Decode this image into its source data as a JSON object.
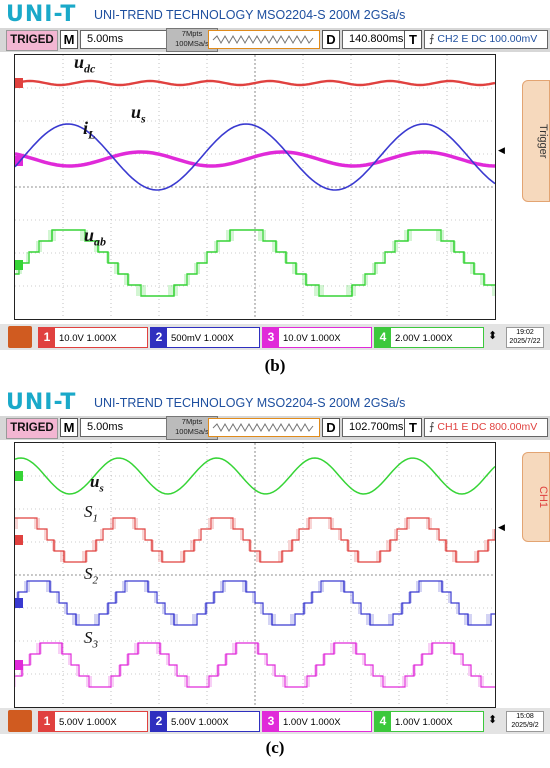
{
  "panel_b": {
    "logo": "UNI-T",
    "brand": "UNI-TREND TECHNOLOGY MSO2204-S 200M 2GSa/s",
    "status": {
      "trig": "TRIGED",
      "m_key": "M",
      "timebase": "5.00ms",
      "mem_top": "7Mpts",
      "mem_bottom": "100MSa/s",
      "d_key": "D",
      "delay": "140.800ms",
      "t_key": "T",
      "trigger_setting": "CH2 E DC 100.00mV"
    },
    "side_tab": "Trigger",
    "signal_labels": {
      "udc_main": "u",
      "udc_sub": "dc",
      "us_main": "u",
      "us_sub": "s",
      "il_main": "i",
      "il_sub": "L",
      "uab_main": "u",
      "uab_sub": "ab"
    },
    "channels": [
      {
        "num": "1",
        "setting": "10.0V 1.000X",
        "color": "#e0413f"
      },
      {
        "num": "2",
        "setting": "500mV 1.000X",
        "color": "#2f2fbf"
      },
      {
        "num": "3",
        "setting": "10.0V 1.000X",
        "color": "#e02ad9"
      },
      {
        "num": "4",
        "setting": "2.00V 1.000X",
        "color": "#3cc83c"
      }
    ],
    "clock_time": "19:02",
    "clock_date": "2025/7/22",
    "caption": "(b)"
  },
  "panel_c": {
    "logo": "UNI-T",
    "brand": "UNI-TREND TECHNOLOGY MSO2204-S 200M 2GSa/s",
    "status": {
      "trig": "TRIGED",
      "m_key": "M",
      "timebase": "5.00ms",
      "mem_top": "7Mpts",
      "mem_bottom": "100MSa/s",
      "d_key": "D",
      "delay": "102.700ms",
      "t_key": "T",
      "trigger_setting": "CH1 E DC 800.00mV"
    },
    "side_tab": "CH1",
    "signal_labels": {
      "us_main": "u",
      "us_sub": "s",
      "s1_main": "S",
      "s1_sub": "1",
      "s2_main": "S",
      "s2_sub": "2",
      "s3_main": "S",
      "s3_sub": "3"
    },
    "channels": [
      {
        "num": "1",
        "setting": "5.00V 1.000X",
        "color": "#e0413f"
      },
      {
        "num": "2",
        "setting": "5.00V 1.000X",
        "color": "#2f2fbf"
      },
      {
        "num": "3",
        "setting": "1.00V 1.000X",
        "color": "#e02ad9"
      },
      {
        "num": "4",
        "setting": "1.00V 1.000X",
        "color": "#3cc83c"
      }
    ],
    "clock_time": "15:08",
    "clock_date": "2025/9/2",
    "caption": "(c)"
  },
  "colors": {
    "ch1": "#e0413f",
    "ch2": "#3a3ad0",
    "ch3": "#e02ad9",
    "ch4": "#36d436",
    "grid": "#9a9a9a"
  }
}
